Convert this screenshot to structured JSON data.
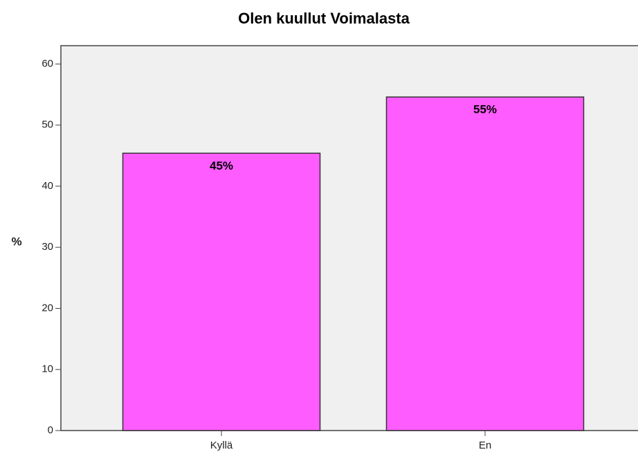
{
  "chart_data": {
    "type": "bar",
    "title": "Olen kuullut Voimalasta",
    "ylabel": "%",
    "categories": [
      "Kyllä",
      "En"
    ],
    "values": [
      45.4,
      54.6
    ],
    "value_labels": [
      "45%",
      "55%"
    ],
    "color": "#ff5cff",
    "ylim": [
      0,
      63
    ],
    "yticks": [
      0,
      10,
      20,
      30,
      40,
      50,
      60
    ],
    "grid": false
  }
}
